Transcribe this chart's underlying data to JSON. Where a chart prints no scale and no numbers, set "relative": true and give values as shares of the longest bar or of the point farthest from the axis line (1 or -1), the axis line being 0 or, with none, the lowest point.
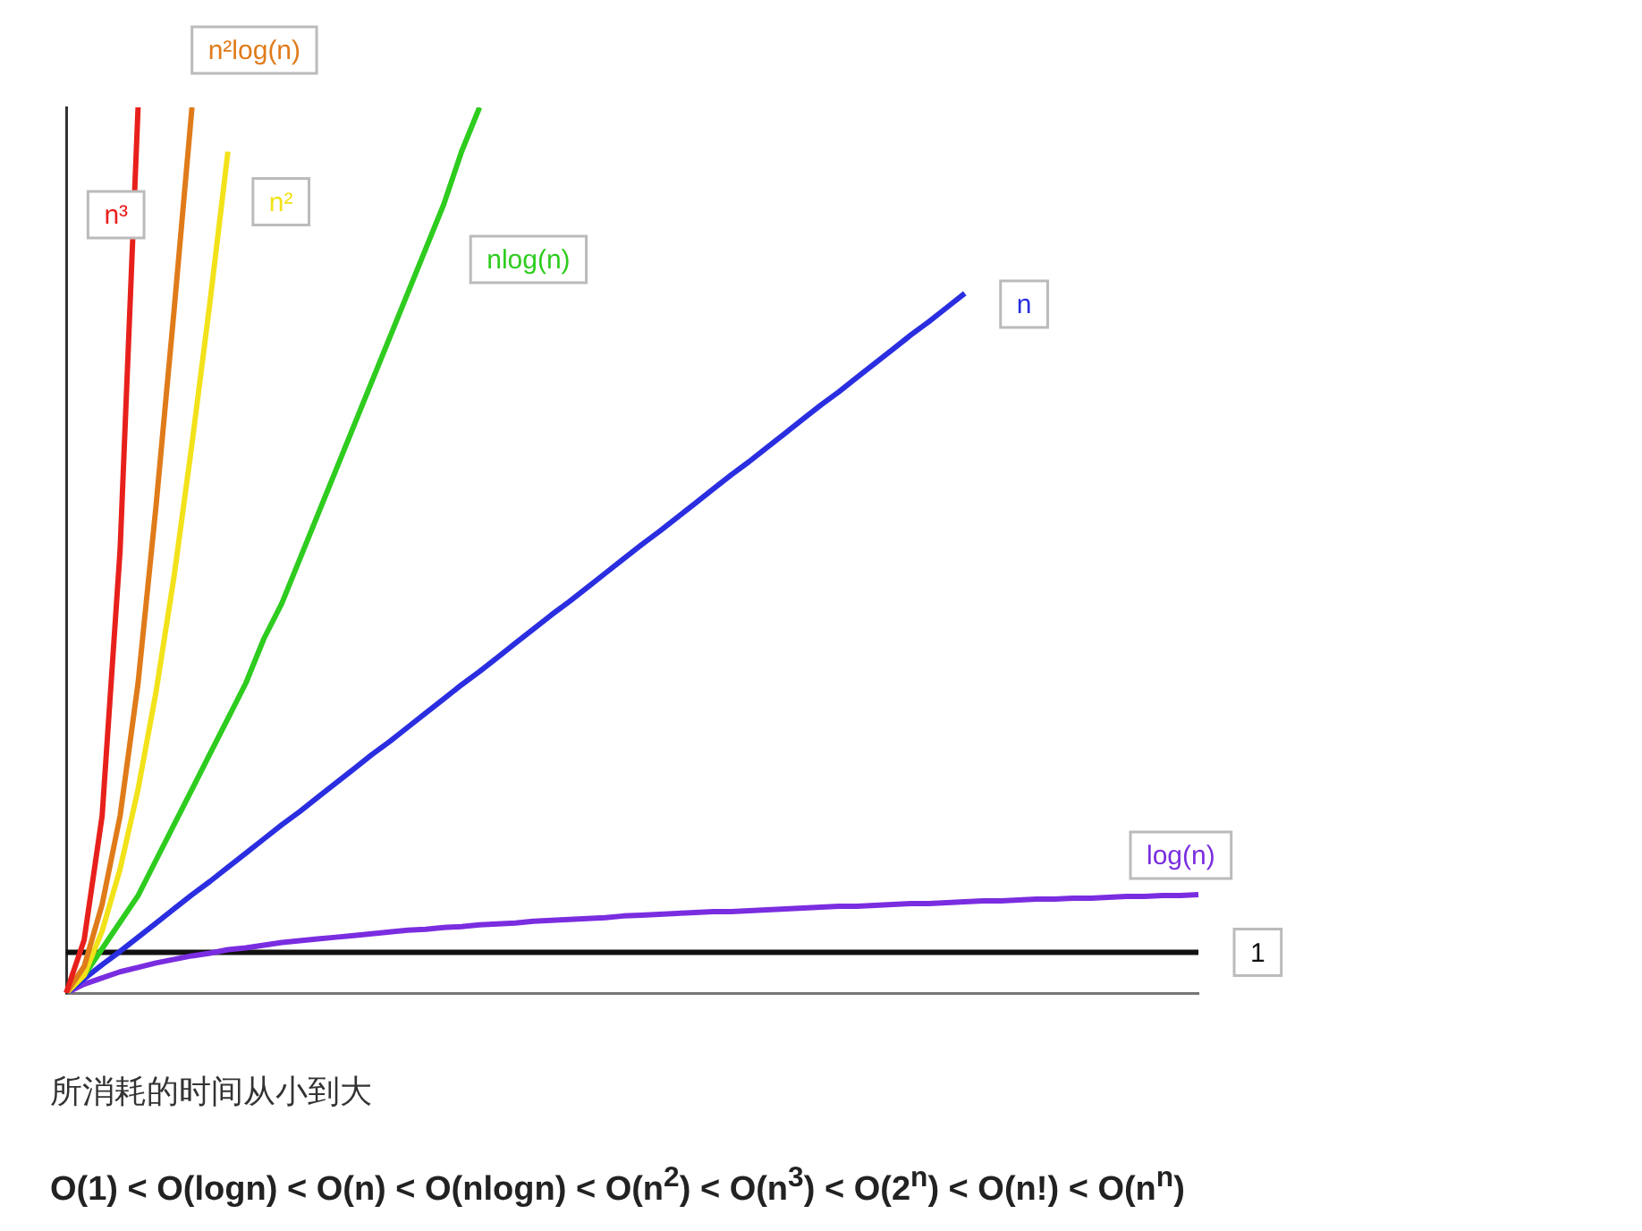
{
  "chart_data": {
    "type": "line",
    "relative": true,
    "grid": false,
    "legend": false,
    "tick_labels": false,
    "marker": "none",
    "line_style": "solid",
    "categories": [
      null,
      null,
      null,
      null,
      null,
      null,
      null,
      null,
      null,
      null,
      null,
      null,
      null,
      null,
      null,
      null,
      null,
      null,
      null,
      null,
      null,
      null,
      null,
      null,
      null,
      null,
      null,
      null,
      null,
      null,
      null,
      null,
      null,
      null,
      null,
      null,
      null,
      null,
      null,
      null,
      null,
      null,
      null,
      null,
      null,
      null,
      null,
      null,
      null,
      null,
      null,
      null,
      null,
      null,
      null,
      null,
      null,
      null,
      null,
      null,
      null,
      null,
      null,
      null
    ],
    "series": [
      {
        "name": "n³",
        "color": "#e8201c",
        "values": [
          0,
          0.06,
          0.2,
          0.5,
          1,
          null,
          null,
          null,
          null,
          null,
          null,
          null,
          null,
          null,
          null,
          null,
          null,
          null,
          null,
          null,
          null,
          null,
          null,
          null,
          null,
          null,
          null,
          null,
          null,
          null,
          null,
          null,
          null,
          null,
          null,
          null,
          null,
          null,
          null,
          null,
          null,
          null,
          null,
          null,
          null,
          null,
          null,
          null,
          null,
          null,
          null,
          null,
          null,
          null,
          null,
          null,
          null,
          null,
          null,
          null,
          null,
          null,
          null,
          null
        ]
      },
      {
        "name": "n²log(n)",
        "color": "#e07b1a",
        "values": [
          0,
          0.03,
          0.1,
          0.2,
          0.35,
          0.55,
          0.77,
          1,
          null,
          null,
          null,
          null,
          null,
          null,
          null,
          null,
          null,
          null,
          null,
          null,
          null,
          null,
          null,
          null,
          null,
          null,
          null,
          null,
          null,
          null,
          null,
          null,
          null,
          null,
          null,
          null,
          null,
          null,
          null,
          null,
          null,
          null,
          null,
          null,
          null,
          null,
          null,
          null,
          null,
          null,
          null,
          null,
          null,
          null,
          null,
          null,
          null,
          null,
          null,
          null,
          null,
          null,
          null,
          null
        ]
      },
      {
        "name": "n²",
        "color": "#f2e21a",
        "values": [
          0,
          0.02,
          0.07,
          0.14,
          0.23,
          0.34,
          0.47,
          0.62,
          0.78,
          0.95,
          null,
          null,
          null,
          null,
          null,
          null,
          null,
          null,
          null,
          null,
          null,
          null,
          null,
          null,
          null,
          null,
          null,
          null,
          null,
          null,
          null,
          null,
          null,
          null,
          null,
          null,
          null,
          null,
          null,
          null,
          null,
          null,
          null,
          null,
          null,
          null,
          null,
          null,
          null,
          null,
          null,
          null,
          null,
          null,
          null,
          null,
          null,
          null,
          null,
          null,
          null,
          null,
          null,
          null
        ]
      },
      {
        "name": "nlog(n)",
        "color": "#2ecc1f",
        "values": [
          0,
          0.02,
          0.05,
          0.08,
          0.11,
          0.15,
          0.19,
          0.23,
          0.27,
          0.31,
          0.35,
          0.4,
          0.44,
          0.49,
          0.54,
          0.59,
          0.64,
          0.69,
          0.74,
          0.79,
          0.84,
          0.89,
          0.95,
          1,
          null,
          null,
          null,
          null,
          null,
          null,
          null,
          null,
          null,
          null,
          null,
          null,
          null,
          null,
          null,
          null,
          null,
          null,
          null,
          null,
          null,
          null,
          null,
          null,
          null,
          null,
          null,
          null,
          null,
          null,
          null,
          null,
          null,
          null,
          null,
          null,
          null,
          null,
          null,
          null
        ]
      },
      {
        "name": "n",
        "color": "#2a2ee0",
        "values": [
          0,
          0.016,
          0.032,
          0.047,
          0.063,
          0.079,
          0.095,
          0.111,
          0.126,
          0.142,
          0.158,
          0.174,
          0.19,
          0.205,
          0.221,
          0.237,
          0.253,
          0.269,
          0.284,
          0.3,
          0.316,
          0.332,
          0.348,
          0.363,
          0.379,
          0.395,
          0.411,
          0.427,
          0.442,
          0.458,
          0.474,
          0.49,
          0.506,
          0.521,
          0.537,
          0.553,
          0.569,
          0.585,
          0.6,
          0.616,
          0.632,
          0.648,
          0.664,
          0.679,
          0.695,
          0.711,
          0.727,
          0.743,
          0.758,
          0.774,
          0.79,
          null,
          null,
          null,
          null,
          null,
          null,
          null,
          null,
          null,
          null,
          null,
          null,
          null
        ]
      },
      {
        "name": "log(n)",
        "color": "#7a2de0",
        "values": [
          0,
          0.01,
          0.017,
          0.024,
          0.029,
          0.034,
          0.038,
          0.042,
          0.045,
          0.049,
          0.051,
          0.054,
          0.057,
          0.059,
          0.061,
          0.063,
          0.065,
          0.067,
          0.069,
          0.071,
          0.072,
          0.074,
          0.075,
          0.077,
          0.078,
          0.079,
          0.081,
          0.082,
          0.083,
          0.084,
          0.085,
          0.087,
          0.088,
          0.089,
          0.09,
          0.091,
          0.092,
          0.092,
          0.093,
          0.094,
          0.095,
          0.096,
          0.097,
          0.098,
          0.098,
          0.099,
          0.1,
          0.101,
          0.101,
          0.102,
          0.103,
          0.104,
          0.104,
          0.105,
          0.106,
          0.106,
          0.107,
          0.107,
          0.108,
          0.109,
          0.109,
          0.11,
          0.11,
          0.111
        ]
      },
      {
        "name": "1",
        "color": "#111111",
        "values": [
          0.046,
          0.046,
          0.046,
          0.046,
          0.046,
          0.046,
          0.046,
          0.046,
          0.046,
          0.046,
          0.046,
          0.046,
          0.046,
          0.046,
          0.046,
          0.046,
          0.046,
          0.046,
          0.046,
          0.046,
          0.046,
          0.046,
          0.046,
          0.046,
          0.046,
          0.046,
          0.046,
          0.046,
          0.046,
          0.046,
          0.046,
          0.046,
          0.046,
          0.046,
          0.046,
          0.046,
          0.046,
          0.046,
          0.046,
          0.046,
          0.046,
          0.046,
          0.046,
          0.046,
          0.046,
          0.046,
          0.046,
          0.046,
          0.046,
          0.046,
          0.046,
          0.046,
          0.046,
          0.046,
          0.046,
          0.046,
          0.046,
          0.046,
          0.046,
          0.046,
          0.046,
          0.046,
          0.046,
          0.046
        ]
      }
    ],
    "annotations": [
      "所消耗的时间从小到大",
      "O(1) < O(logn) < O(n) < O(nlogn) < O(n$^{2}$) < O(n$^{3}$) < O(2$^{n}$) < O(n!) < O(n$^{n}$)"
    ]
  }
}
